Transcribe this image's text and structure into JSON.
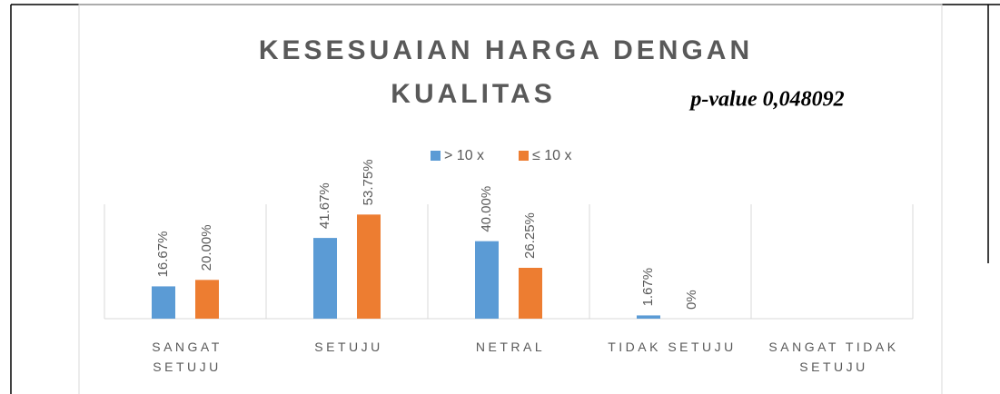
{
  "chart_data": {
    "type": "bar",
    "title": [
      "KESESUAIAN HARGA DENGAN",
      "KUALITAS"
    ],
    "annotation": "p-value 0,048092",
    "categories": [
      "SANGAT SETUJU",
      "SETUJU",
      "NETRAL",
      "TIDAK SETUJU",
      "SANGAT TIDAK SETUJU"
    ],
    "series": [
      {
        "name": "> 10 x",
        "color": "#5b9bd5",
        "values": [
          16.67,
          41.67,
          40.0,
          1.67,
          null
        ],
        "value_labels": [
          "16.67%",
          "41.67%",
          "40.00%",
          "1.67%",
          null
        ]
      },
      {
        "name": "≤ 10 x",
        "color": "#ed7d31",
        "values": [
          20.0,
          53.75,
          26.25,
          0,
          null
        ],
        "value_labels": [
          "20.00%",
          "53.75%",
          "26.25%",
          "0%",
          null
        ]
      }
    ],
    "ylim": [
      0,
      60
    ],
    "legend": "top"
  }
}
